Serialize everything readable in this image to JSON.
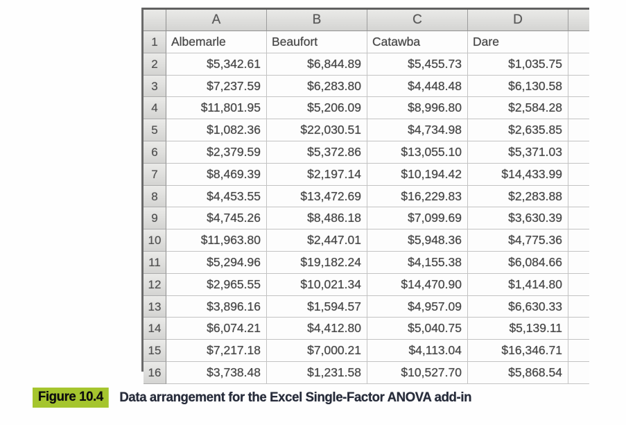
{
  "colors": {
    "highlight_green": "#a5c52e",
    "header_fill": "#d9d9d7",
    "grid_line": "#c3c3c3",
    "outer_border": "#6a6a6a",
    "cell_text": "#454545",
    "caption_text": "#272c3a"
  },
  "sheet": {
    "corner_label": "",
    "columns": [
      "A",
      "B",
      "C",
      "D"
    ],
    "rows": [
      {
        "num": "1",
        "align": "left",
        "cells": [
          "Albemarle",
          "Beaufort",
          "Catawba",
          "Dare"
        ]
      },
      {
        "num": "2",
        "align": "right",
        "cells": [
          "$5,342.61",
          "$6,844.89",
          "$5,455.73",
          "$1,035.75"
        ]
      },
      {
        "num": "3",
        "align": "right",
        "cells": [
          "$7,237.59",
          "$6,283.80",
          "$4,448.48",
          "$6,130.58"
        ]
      },
      {
        "num": "4",
        "align": "right",
        "cells": [
          "$11,801.95",
          "$5,206.09",
          "$8,996.80",
          "$2,584.28"
        ]
      },
      {
        "num": "5",
        "align": "right",
        "cells": [
          "$1,082.36",
          "$22,030.51",
          "$4,734.98",
          "$2,635.85"
        ]
      },
      {
        "num": "6",
        "align": "right",
        "cells": [
          "$2,379.59",
          "$5,372.86",
          "$13,055.10",
          "$5,371.03"
        ]
      },
      {
        "num": "7",
        "align": "right",
        "cells": [
          "$8,469.39",
          "$2,197.14",
          "$10,194.42",
          "$14,433.99"
        ]
      },
      {
        "num": "8",
        "align": "right",
        "cells": [
          "$4,453.55",
          "$13,472.69",
          "$16,229.83",
          "$2,283.88"
        ]
      },
      {
        "num": "9",
        "align": "right",
        "cells": [
          "$4,745.26",
          "$8,486.18",
          "$7,099.69",
          "$3,630.39"
        ]
      },
      {
        "num": "10",
        "align": "right",
        "cells": [
          "$11,963.80",
          "$2,447.01",
          "$5,948.36",
          "$4,775.36"
        ]
      },
      {
        "num": "11",
        "align": "right",
        "cells": [
          "$5,294.96",
          "$19,182.24",
          "$4,155.38",
          "$6,084.66"
        ]
      },
      {
        "num": "12",
        "align": "right",
        "cells": [
          "$2,965.55",
          "$10,021.34",
          "$14,470.90",
          "$1,414.80"
        ]
      },
      {
        "num": "13",
        "align": "right",
        "cells": [
          "$3,896.16",
          "$1,594.57",
          "$4,957.09",
          "$6,630.33"
        ]
      },
      {
        "num": "14",
        "align": "right",
        "cells": [
          "$6,074.21",
          "$4,412.80",
          "$5,040.75",
          "$5,139.11"
        ]
      },
      {
        "num": "15",
        "align": "right",
        "cells": [
          "$7,217.18",
          "$7,000.21",
          "$4,113.04",
          "$16,346.71"
        ]
      },
      {
        "num": "16",
        "align": "right",
        "cells": [
          "$3,738.48",
          "$1,231.58",
          "$10,527.70",
          "$5,868.54"
        ]
      }
    ]
  },
  "caption": {
    "label": "Figure 10.4",
    "text": "Data arrangement for the Excel Single-Factor ANOVA add-in"
  }
}
